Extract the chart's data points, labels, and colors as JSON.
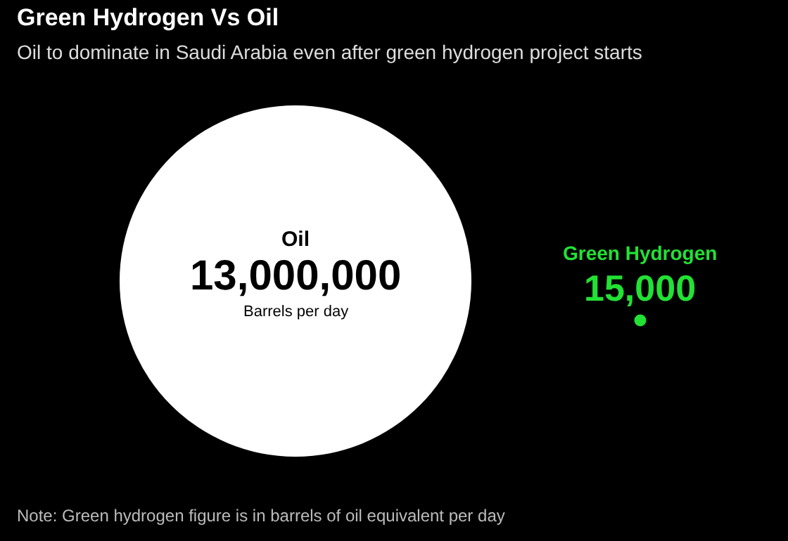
{
  "chart_data": {
    "type": "other",
    "title": "Green Hydrogen Vs Oil",
    "subtitle": "Oil to dominate in Saudi Arabia even after green hydrogen project starts",
    "categories": [
      "Oil",
      "Green Hydrogen"
    ],
    "values": [
      13000000,
      15000
    ],
    "value_labels": [
      "13,000,000",
      "15,000"
    ],
    "colors": [
      "#ffffff",
      "#22e134"
    ],
    "annotations": [
      {
        "text": "Barrels per day",
        "x": "Oil"
      },
      "Note: Green hydrogen figure is in barrels of oil equivalent per day"
    ]
  }
}
